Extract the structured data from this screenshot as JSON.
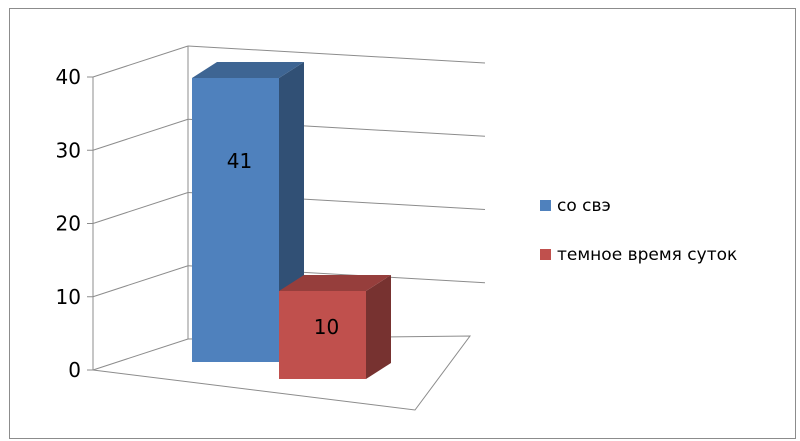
{
  "chart_data": {
    "type": "bar",
    "projection": "3d",
    "title": "",
    "xlabel": "",
    "ylabel": "",
    "ylim": [
      0,
      40
    ],
    "yticks": [
      0,
      10,
      20,
      30,
      40
    ],
    "grid": true,
    "legend_position": "right",
    "series": [
      {
        "name": "со свэ",
        "values": [
          41
        ],
        "color": "#4f81bd",
        "data_label": "41"
      },
      {
        "name": "темное время суток",
        "values": [
          10
        ],
        "color": "#c0504d",
        "data_label": "10"
      }
    ]
  }
}
